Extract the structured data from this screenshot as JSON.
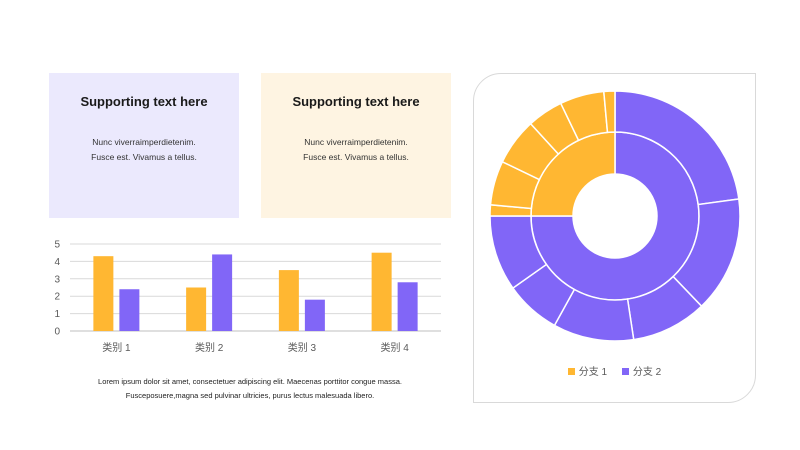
{
  "cards": [
    {
      "title": "Supporting text here",
      "lines": [
        "Nunc viverraimperdietenim.",
        "Fusce est. Vivamus a tellus."
      ]
    },
    {
      "title": "Supporting text here",
      "lines": [
        "Nunc viverraimperdietenim.",
        "Fusce est. Vivamus a tellus."
      ]
    }
  ],
  "footnote": {
    "line1": "Lorem ipsum dolor sit amet, consectetuer adipiscing elit. Maecenas porttitor congue massa.",
    "line2": "Fusceposuere,magna sed pulvinar ultricies, purus lectus malesuada libero."
  },
  "colors": {
    "orange": "#ffb732",
    "purple": "#8166f7"
  },
  "chart_data": [
    {
      "type": "bar",
      "categories": [
        "类别 1",
        "类别 2",
        "类别 3",
        "类别 4"
      ],
      "series": [
        {
          "values": [
            4.3,
            2.5,
            3.5,
            4.5
          ],
          "color": "#ffb732"
        },
        {
          "values": [
            2.4,
            4.4,
            1.8,
            2.8
          ],
          "color": "#8166f7"
        }
      ],
      "ylim": [
        0,
        5
      ],
      "yticks": [
        "0",
        "1",
        "2",
        "3",
        "4",
        "5"
      ],
      "grid": true,
      "title": "",
      "xlabel": "",
      "ylabel": ""
    },
    {
      "type": "pie",
      "style": "sunburst-donut",
      "legend": {
        "position": "bottom",
        "entries": [
          "分支 1",
          "分支 2"
        ]
      },
      "series": [
        {
          "name": "分支 1",
          "color": "#ffb732",
          "inner_value": 25,
          "outer_values": [
            4,
            16,
            17,
            13,
            16,
            4
          ]
        },
        {
          "name": "分支 2",
          "color": "#8166f7",
          "inner_value": 75,
          "outer_values": [
            35,
            23,
            15,
            16,
            11,
            15
          ]
        }
      ]
    }
  ]
}
